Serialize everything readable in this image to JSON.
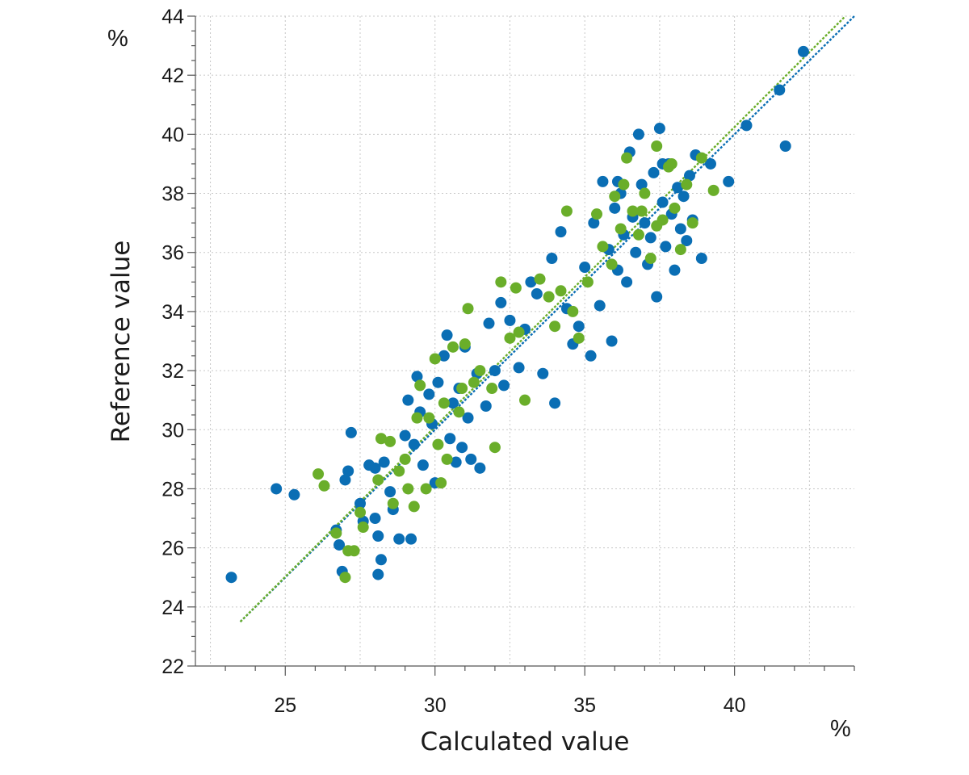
{
  "chart_data": {
    "type": "scatter",
    "title": "",
    "xlabel": "Calculated value",
    "ylabel": "Reference value",
    "x_unit": "%",
    "y_unit": "%",
    "xlim": [
      22,
      44
    ],
    "ylim": [
      22,
      44
    ],
    "x_ticks": [
      25,
      30,
      35,
      40
    ],
    "y_ticks": [
      22,
      24,
      26,
      28,
      30,
      32,
      34,
      36,
      38,
      40,
      42,
      44
    ],
    "grid": true,
    "legend": "none",
    "series": [
      {
        "color": "#0a6eb4",
        "points": [
          [
            23.2,
            25.0
          ],
          [
            24.7,
            28.0
          ],
          [
            25.3,
            27.8
          ],
          [
            26.7,
            26.6
          ],
          [
            26.8,
            26.1
          ],
          [
            26.9,
            25.2
          ],
          [
            27.0,
            28.3
          ],
          [
            27.1,
            28.6
          ],
          [
            27.2,
            29.9
          ],
          [
            27.5,
            27.5
          ],
          [
            27.6,
            26.9
          ],
          [
            27.8,
            28.8
          ],
          [
            28.0,
            28.7
          ],
          [
            28.0,
            27.0
          ],
          [
            28.1,
            26.4
          ],
          [
            28.1,
            25.1
          ],
          [
            28.2,
            25.6
          ],
          [
            28.3,
            28.9
          ],
          [
            28.5,
            27.9
          ],
          [
            28.6,
            27.3
          ],
          [
            28.8,
            26.3
          ],
          [
            29.0,
            29.8
          ],
          [
            29.1,
            31.0
          ],
          [
            29.2,
            26.3
          ],
          [
            29.3,
            29.5
          ],
          [
            29.4,
            31.8
          ],
          [
            29.5,
            30.6
          ],
          [
            29.6,
            28.8
          ],
          [
            29.8,
            31.2
          ],
          [
            29.9,
            30.2
          ],
          [
            30.0,
            28.2
          ],
          [
            30.1,
            31.6
          ],
          [
            30.3,
            32.5
          ],
          [
            30.4,
            33.2
          ],
          [
            30.5,
            29.7
          ],
          [
            30.6,
            30.9
          ],
          [
            30.7,
            28.9
          ],
          [
            30.8,
            31.4
          ],
          [
            30.9,
            29.4
          ],
          [
            31.0,
            32.8
          ],
          [
            31.1,
            30.4
          ],
          [
            31.2,
            29.0
          ],
          [
            31.4,
            31.9
          ],
          [
            31.5,
            28.7
          ],
          [
            31.7,
            30.8
          ],
          [
            31.8,
            33.6
          ],
          [
            32.0,
            32.0
          ],
          [
            32.2,
            34.3
          ],
          [
            32.3,
            31.5
          ],
          [
            32.5,
            33.7
          ],
          [
            32.8,
            32.1
          ],
          [
            33.0,
            33.4
          ],
          [
            33.2,
            35.0
          ],
          [
            33.4,
            34.6
          ],
          [
            33.6,
            31.9
          ],
          [
            33.9,
            35.8
          ],
          [
            34.0,
            30.9
          ],
          [
            34.2,
            36.7
          ],
          [
            34.4,
            34.1
          ],
          [
            34.6,
            32.9
          ],
          [
            34.8,
            33.5
          ],
          [
            35.0,
            35.5
          ],
          [
            35.2,
            32.5
          ],
          [
            35.3,
            37.0
          ],
          [
            35.5,
            34.2
          ],
          [
            35.6,
            38.4
          ],
          [
            35.8,
            36.1
          ],
          [
            35.9,
            33.0
          ],
          [
            36.0,
            37.5
          ],
          [
            36.1,
            35.4
          ],
          [
            36.2,
            38.0
          ],
          [
            36.3,
            36.6
          ],
          [
            36.4,
            35.0
          ],
          [
            36.5,
            39.4
          ],
          [
            36.6,
            37.2
          ],
          [
            36.7,
            36.0
          ],
          [
            36.8,
            40.0
          ],
          [
            36.9,
            38.3
          ],
          [
            37.0,
            37.0
          ],
          [
            37.1,
            35.6
          ],
          [
            37.2,
            36.5
          ],
          [
            37.3,
            38.7
          ],
          [
            37.4,
            34.5
          ],
          [
            37.5,
            40.2
          ],
          [
            37.6,
            37.7
          ],
          [
            37.7,
            36.2
          ],
          [
            37.8,
            39.0
          ],
          [
            37.9,
            37.3
          ],
          [
            38.0,
            35.4
          ],
          [
            38.1,
            38.2
          ],
          [
            38.2,
            36.8
          ],
          [
            38.3,
            37.9
          ],
          [
            38.4,
            36.4
          ],
          [
            38.5,
            38.6
          ],
          [
            38.6,
            37.1
          ],
          [
            38.7,
            39.3
          ],
          [
            38.9,
            35.8
          ],
          [
            39.2,
            39.0
          ],
          [
            39.8,
            38.4
          ],
          [
            40.4,
            40.3
          ],
          [
            41.5,
            41.5
          ],
          [
            41.7,
            39.6
          ],
          [
            42.3,
            42.8
          ],
          [
            36.1,
            38.4
          ],
          [
            37.6,
            39.0
          ]
        ]
      },
      {
        "color": "#6aae2a",
        "points": [
          [
            26.1,
            28.5
          ],
          [
            26.3,
            28.1
          ],
          [
            26.7,
            26.5
          ],
          [
            27.0,
            25.0
          ],
          [
            27.1,
            25.9
          ],
          [
            27.3,
            25.9
          ],
          [
            27.5,
            27.2
          ],
          [
            27.6,
            26.7
          ],
          [
            28.1,
            28.3
          ],
          [
            28.2,
            29.7
          ],
          [
            28.5,
            29.6
          ],
          [
            28.6,
            27.5
          ],
          [
            28.8,
            28.6
          ],
          [
            29.0,
            29.0
          ],
          [
            29.1,
            28.0
          ],
          [
            29.3,
            27.4
          ],
          [
            29.4,
            30.4
          ],
          [
            29.5,
            31.5
          ],
          [
            29.7,
            28.0
          ],
          [
            29.8,
            30.4
          ],
          [
            30.0,
            32.4
          ],
          [
            30.1,
            29.5
          ],
          [
            30.2,
            28.2
          ],
          [
            30.3,
            30.9
          ],
          [
            30.4,
            29.0
          ],
          [
            30.6,
            32.8
          ],
          [
            30.8,
            30.6
          ],
          [
            30.9,
            31.4
          ],
          [
            31.0,
            32.9
          ],
          [
            31.1,
            34.1
          ],
          [
            31.3,
            31.6
          ],
          [
            31.5,
            32.0
          ],
          [
            31.9,
            31.4
          ],
          [
            32.0,
            29.4
          ],
          [
            32.2,
            35.0
          ],
          [
            32.5,
            33.1
          ],
          [
            32.7,
            34.8
          ],
          [
            32.8,
            33.3
          ],
          [
            33.0,
            31.0
          ],
          [
            33.5,
            35.1
          ],
          [
            33.8,
            34.5
          ],
          [
            34.0,
            33.5
          ],
          [
            34.2,
            34.7
          ],
          [
            34.4,
            37.4
          ],
          [
            34.6,
            34.0
          ],
          [
            34.8,
            33.1
          ],
          [
            35.1,
            35.0
          ],
          [
            35.4,
            37.3
          ],
          [
            35.6,
            36.2
          ],
          [
            35.9,
            35.6
          ],
          [
            36.0,
            37.9
          ],
          [
            36.2,
            36.8
          ],
          [
            36.4,
            39.2
          ],
          [
            36.6,
            37.4
          ],
          [
            36.8,
            36.6
          ],
          [
            37.0,
            38.0
          ],
          [
            37.2,
            35.8
          ],
          [
            37.4,
            39.6
          ],
          [
            37.6,
            37.1
          ],
          [
            37.8,
            38.9
          ],
          [
            38.0,
            37.5
          ],
          [
            38.2,
            36.1
          ],
          [
            38.4,
            38.3
          ],
          [
            38.6,
            37.0
          ],
          [
            38.9,
            39.2
          ],
          [
            39.3,
            38.1
          ],
          [
            36.9,
            37.4
          ],
          [
            37.4,
            36.9
          ],
          [
            36.3,
            38.3
          ],
          [
            37.9,
            39.0
          ]
        ]
      }
    ],
    "fit_lines": [
      {
        "color": "#0a6eb4",
        "x": [
          23.5,
          44.0
        ],
        "y": [
          23.5,
          44.0
        ]
      },
      {
        "color": "#6aae2a",
        "x": [
          23.5,
          43.7
        ],
        "y": [
          23.5,
          44.0
        ]
      }
    ]
  }
}
